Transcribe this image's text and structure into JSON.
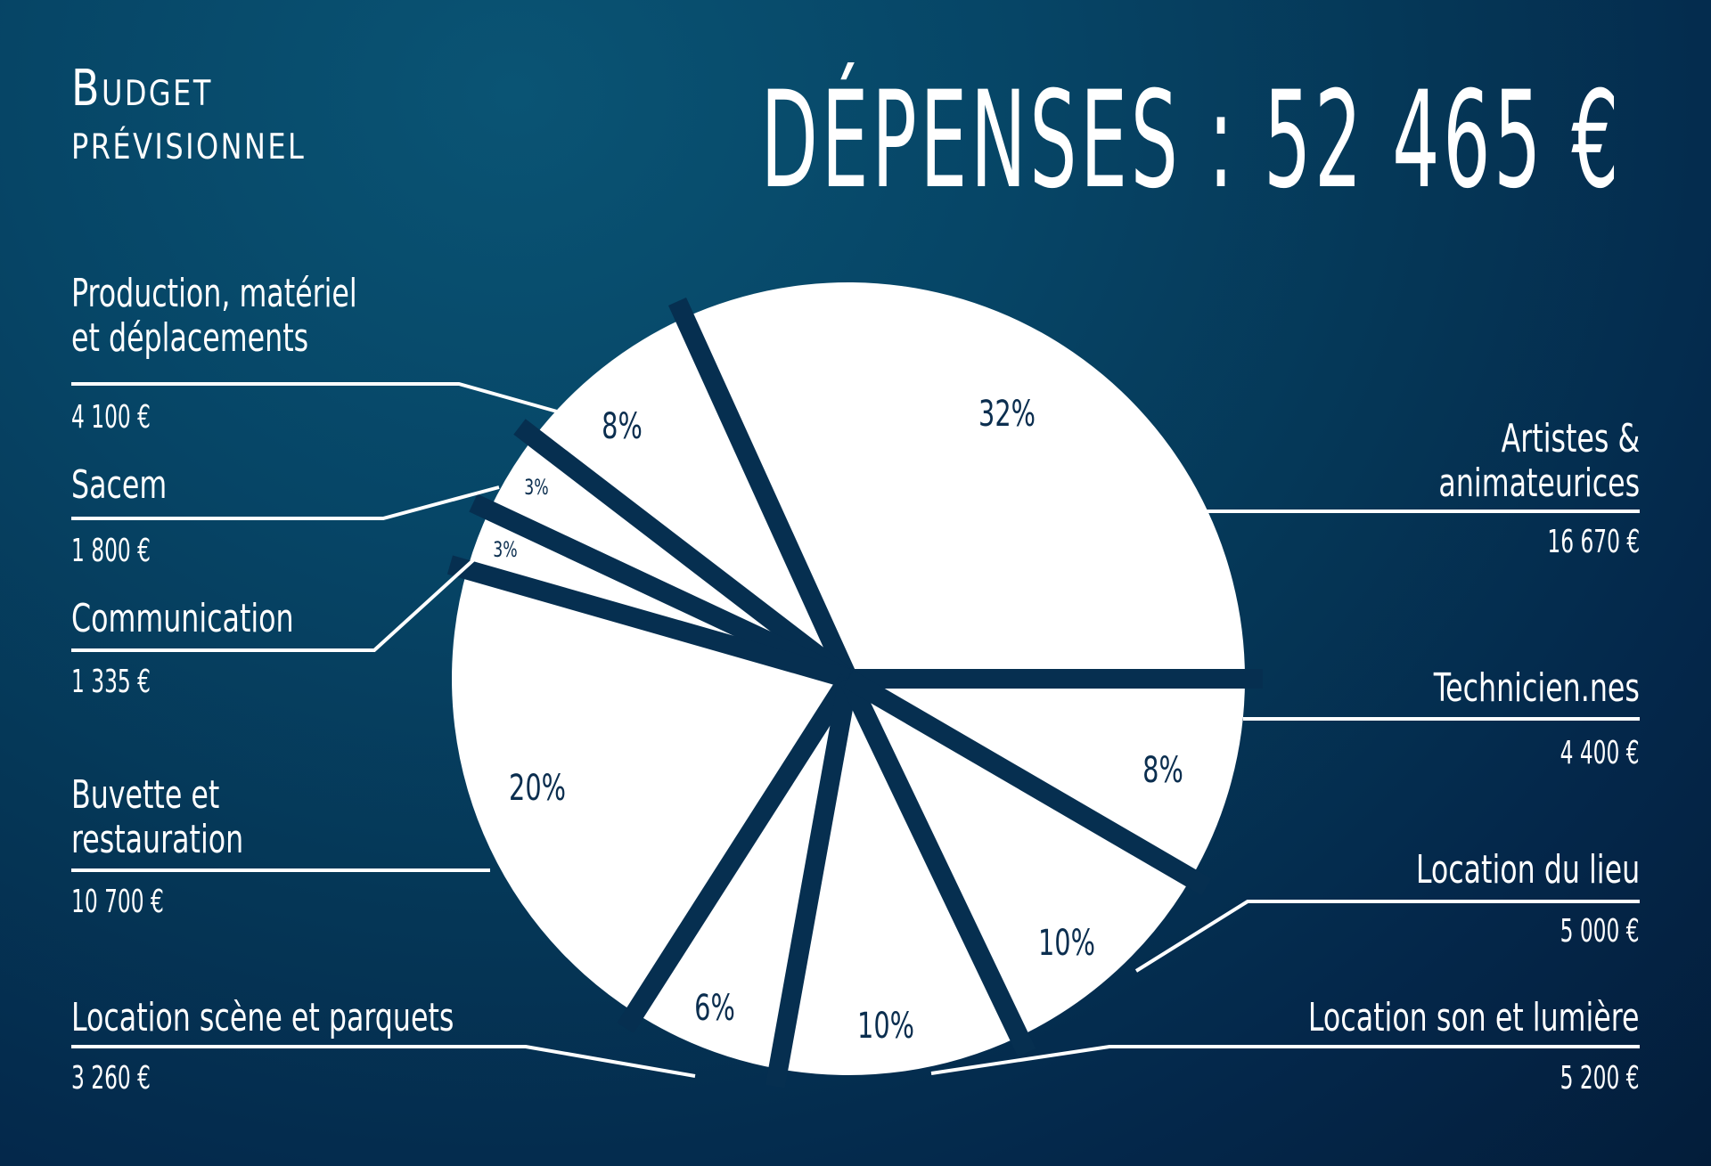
{
  "header": {
    "subtitle_line1": "Budget",
    "subtitle_line2": "prévisionnel",
    "title": "DÉPENSES : 52 465 €"
  },
  "colors": {
    "background_top": "#0a5474",
    "background_bottom": "#031d3a",
    "slice_fill": "#ffffff",
    "percent_text": "#0b2e4f",
    "leader_lines": "#ffffff"
  },
  "labels": {
    "production": {
      "name_line1": "Production, matériel",
      "name_line2": "et déplacements",
      "amount": "4 100 €",
      "percent": "8%"
    },
    "sacem": {
      "name_line1": "Sacem",
      "amount": "1 800 €",
      "percent": "3%"
    },
    "communication": {
      "name_line1": "Communication",
      "amount": "1 335 €",
      "percent": "3%"
    },
    "buvette": {
      "name_line1": "Buvette et",
      "name_line2": "restauration",
      "amount": "10 700 €",
      "percent": "20%"
    },
    "scene": {
      "name_line1": "Location scène et parquets",
      "amount": "3 260 €",
      "percent": "6%"
    },
    "artistes": {
      "name_line1": "Artistes &",
      "name_line2": "animateurices",
      "amount": "16 670 €",
      "percent": "32%"
    },
    "techniciens": {
      "name_line1": "Technicien.nes",
      "amount": "4 400 €",
      "percent": "8%"
    },
    "lieu": {
      "name_line1": "Location du lieu",
      "amount": "5 000 €",
      "percent": "10%"
    },
    "son_lumiere": {
      "name_line1": "Location son et lumière",
      "amount": "5 200 €",
      "percent": "10%"
    }
  },
  "chart_data": {
    "type": "pie",
    "title": "Dépenses : 52 465 €",
    "subtitle": "Budget prévisionnel",
    "currency": "EUR",
    "total": 52465,
    "categories": [
      "Artistes & animateurices",
      "Production, matériel et déplacements",
      "Sacem",
      "Communication",
      "Buvette et restauration",
      "Location scène et parquets",
      "Location son et lumière",
      "Location du lieu",
      "Technicien.nes"
    ],
    "values": [
      16670,
      4100,
      1800,
      1335,
      10700,
      3260,
      5200,
      5000,
      4400
    ],
    "percent_labels": [
      "32%",
      "8%",
      "3%",
      "3%",
      "20%",
      "6%",
      "10%",
      "10%",
      "8%"
    ],
    "start_angle": "3 o'clock, counter-clockwise",
    "legend_position": "labels around pie with leader lines"
  }
}
